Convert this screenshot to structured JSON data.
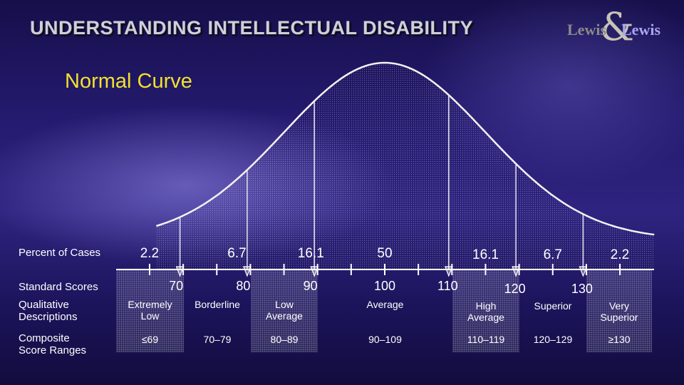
{
  "header": {
    "title": "UNDERSTANDING INTELLECTUAL DISABILITY",
    "logo_left": "Lewis",
    "logo_amp": "&",
    "logo_right": "Lewis"
  },
  "subtitle": "Normal Curve",
  "row_labels": {
    "percent": "Percent of Cases",
    "standard": "Standard Scores",
    "qualitative": [
      "Qualitative",
      "Descriptions"
    ],
    "composite": [
      "Composite",
      "Score Ranges"
    ]
  },
  "percents": [
    "2.2",
    "6.7",
    "16.1",
    "50",
    "16.1",
    "6.7",
    "2.2"
  ],
  "standard_scores": [
    "70",
    "80",
    "90",
    "100",
    "110",
    "120",
    "130"
  ],
  "descriptions": [
    [
      "Extremely",
      "Low"
    ],
    [
      "Borderline"
    ],
    [
      "Low",
      "Average"
    ],
    [
      "Average"
    ],
    [
      "High",
      "Average"
    ],
    [
      "Superior"
    ],
    [
      "Very",
      "Superior"
    ]
  ],
  "ranges": [
    "≤69",
    "70–79",
    "80–89",
    "90–109",
    "110–119",
    "120–129",
    "≥130"
  ],
  "chart_data": {
    "type": "area",
    "distribution": "normal",
    "mean": 100,
    "sd": 15,
    "x": [
      70,
      80,
      90,
      100,
      110,
      120,
      130
    ],
    "category_percents": [
      2.2,
      6.7,
      16.1,
      50,
      16.1,
      6.7,
      2.2
    ],
    "category_bounds": [
      69,
      79,
      89,
      109,
      119,
      129
    ]
  }
}
